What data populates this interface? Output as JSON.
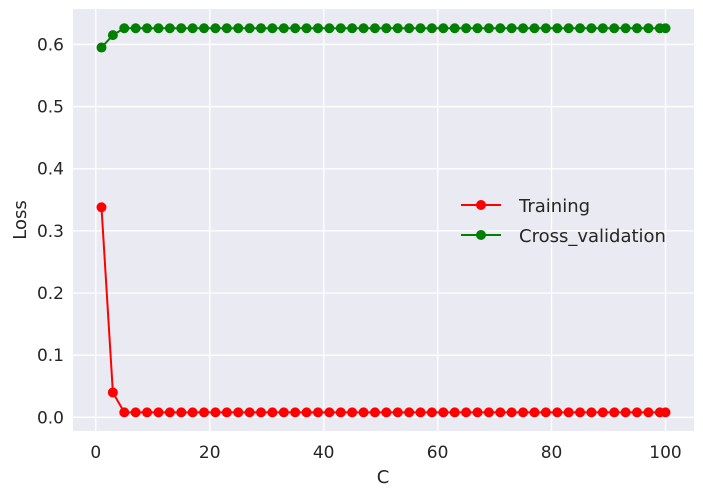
{
  "chart_data": {
    "type": "line",
    "title": "",
    "xlabel": "C",
    "ylabel": "Loss",
    "xlim": [
      -4,
      105
    ],
    "ylim": [
      -0.022,
      0.657
    ],
    "xticks": [
      0,
      20,
      40,
      60,
      80,
      100
    ],
    "yticks": [
      0.0,
      0.1,
      0.2,
      0.3,
      0.4,
      0.5,
      0.6
    ],
    "xtick_labels": [
      "0",
      "20",
      "40",
      "60",
      "80",
      "100"
    ],
    "ytick_labels": [
      "0.0",
      "0.1",
      "0.2",
      "0.3",
      "0.4",
      "0.5",
      "0.6"
    ],
    "grid": true,
    "background": "#eaeaf2",
    "legend_placement": "center-right",
    "x": [
      1,
      3,
      5,
      7,
      9,
      11,
      13,
      15,
      17,
      19,
      21,
      23,
      25,
      27,
      29,
      31,
      33,
      35,
      37,
      39,
      41,
      43,
      45,
      47,
      49,
      51,
      53,
      55,
      57,
      59,
      61,
      63,
      65,
      67,
      69,
      71,
      73,
      75,
      77,
      79,
      81,
      83,
      85,
      87,
      89,
      91,
      93,
      95,
      97,
      99,
      100
    ],
    "series": [
      {
        "name": "Training",
        "color": "#ff0000",
        "values": [
          0.338,
          0.04,
          0.008,
          0.008,
          0.008,
          0.008,
          0.008,
          0.008,
          0.008,
          0.008,
          0.008,
          0.008,
          0.008,
          0.008,
          0.008,
          0.008,
          0.008,
          0.008,
          0.008,
          0.008,
          0.008,
          0.008,
          0.008,
          0.008,
          0.008,
          0.008,
          0.008,
          0.008,
          0.008,
          0.008,
          0.008,
          0.008,
          0.008,
          0.008,
          0.008,
          0.008,
          0.008,
          0.008,
          0.008,
          0.008,
          0.008,
          0.008,
          0.008,
          0.008,
          0.008,
          0.008,
          0.008,
          0.008,
          0.008,
          0.008,
          0.008
        ]
      },
      {
        "name": "Cross_validation",
        "color": "#008000",
        "values": [
          0.595,
          0.615,
          0.626,
          0.626,
          0.626,
          0.626,
          0.626,
          0.626,
          0.626,
          0.626,
          0.626,
          0.626,
          0.626,
          0.626,
          0.626,
          0.626,
          0.626,
          0.626,
          0.626,
          0.626,
          0.626,
          0.626,
          0.626,
          0.626,
          0.626,
          0.626,
          0.626,
          0.626,
          0.626,
          0.626,
          0.626,
          0.626,
          0.626,
          0.626,
          0.626,
          0.626,
          0.626,
          0.626,
          0.626,
          0.626,
          0.626,
          0.626,
          0.626,
          0.626,
          0.626,
          0.626,
          0.626,
          0.626,
          0.626,
          0.626,
          0.626
        ]
      }
    ]
  }
}
